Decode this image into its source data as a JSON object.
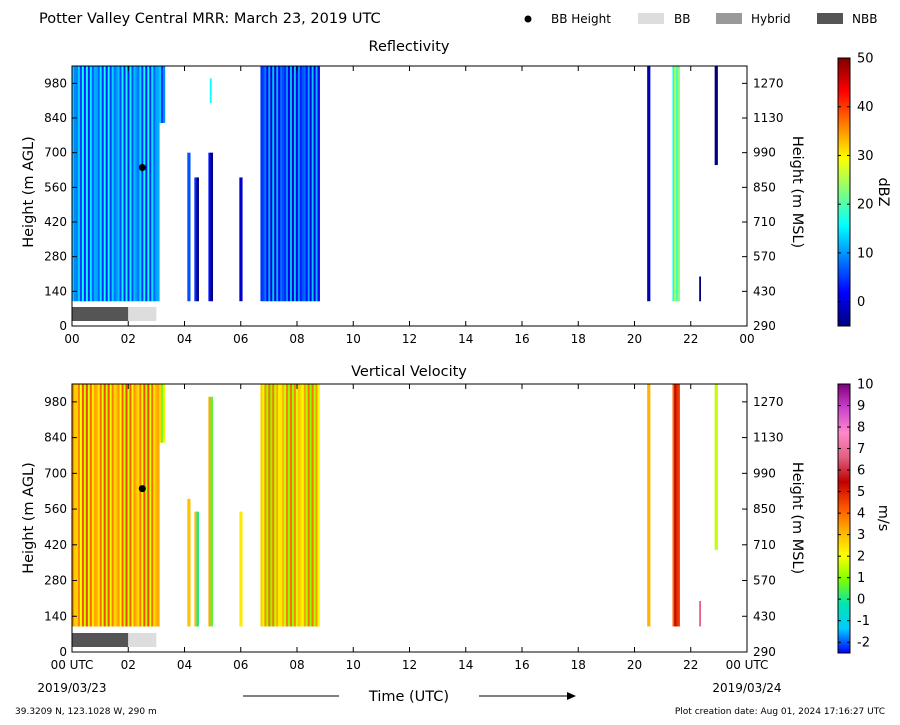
{
  "header": {
    "title": "Potter Valley Central MRR:  March 23, 2019 UTC",
    "legend": [
      {
        "label": "BB Height",
        "kind": "dot",
        "color": "#000000"
      },
      {
        "label": "BB",
        "kind": "swatch",
        "color": "#dddddd"
      },
      {
        "label": "Hybrid",
        "kind": "swatch",
        "color": "#999999"
      },
      {
        "label": "NBB",
        "kind": "swatch",
        "color": "#555555"
      }
    ]
  },
  "footer": {
    "location": "39.3209 N, 123.1028 W, 290 m",
    "creation": "Plot creation date: Aug 01, 2024 17:16:27 UTC",
    "xlabel": "Time (UTC)",
    "start_date": "2019/03/23",
    "end_date": "2019/03/24"
  },
  "chart_data": [
    {
      "type": "heatmap",
      "title": "Reflectivity",
      "ylabel": "Height (m AGL)",
      "y2label": "Height (m MSL)",
      "cbar_label": "dBZ",
      "xlim": [
        0,
        24
      ],
      "ylim": [
        0,
        1050
      ],
      "x_ticks": [
        "00",
        "02",
        "04",
        "06",
        "08",
        "10",
        "12",
        "14",
        "16",
        "18",
        "20",
        "22",
        "00"
      ],
      "y_ticks": [
        0,
        140,
        280,
        420,
        560,
        700,
        840,
        980
      ],
      "y2_ticks": [
        290,
        430,
        570,
        710,
        850,
        990,
        1130,
        1270
      ],
      "cbar_range": [
        -5,
        50
      ],
      "cbar_ticks": [
        0,
        10,
        20,
        30,
        40,
        50
      ],
      "colormap": [
        "#00007f",
        "#0000ff",
        "#007fff",
        "#00ffff",
        "#7fff7f",
        "#ffff00",
        "#ff7f00",
        "#ff0000",
        "#7f0000"
      ],
      "bb_height": [
        {
          "time": 2.5,
          "height": 640
        }
      ],
      "bb_bar": [
        {
          "start": 0.0,
          "end": 2.0,
          "class": "NBB"
        },
        {
          "start": 2.0,
          "end": 3.0,
          "class": "BB"
        }
      ],
      "echo_columns": [
        {
          "start": 0.0,
          "end": 3.1,
          "bottom": 100,
          "top": 1050,
          "value": 10
        },
        {
          "start": 3.1,
          "end": 3.3,
          "bottom": 820,
          "top": 1050,
          "value": 8
        },
        {
          "start": 4.1,
          "end": 4.2,
          "bottom": 100,
          "top": 700,
          "value": 0
        },
        {
          "start": 4.35,
          "end": 4.5,
          "bottom": 100,
          "top": 600,
          "value": -2
        },
        {
          "start": 4.85,
          "end": 5.0,
          "bottom": 100,
          "top": 700,
          "value": -3
        },
        {
          "start": 4.9,
          "end": 4.95,
          "bottom": 900,
          "top": 1000,
          "value": 12
        },
        {
          "start": 5.95,
          "end": 6.05,
          "bottom": 100,
          "top": 600,
          "value": -2
        },
        {
          "start": 6.7,
          "end": 8.8,
          "bottom": 100,
          "top": 1050,
          "value": 6
        },
        {
          "start": 20.45,
          "end": 20.55,
          "bottom": 100,
          "top": 1050,
          "value": 2
        },
        {
          "start": 21.35,
          "end": 21.6,
          "bottom": 100,
          "top": 1050,
          "value": 22
        },
        {
          "start": 22.3,
          "end": 22.35,
          "bottom": 100,
          "top": 200,
          "value": 0
        },
        {
          "start": 22.85,
          "end": 22.95,
          "bottom": 650,
          "top": 1050,
          "value": 0
        }
      ]
    },
    {
      "type": "heatmap",
      "title": "Vertical Velocity",
      "ylabel": "Height (m AGL)",
      "y2label": "Height (m MSL)",
      "cbar_label": "m/s",
      "xlim": [
        0,
        24
      ],
      "ylim": [
        0,
        1050
      ],
      "x_ticks": [
        "00 UTC",
        "02",
        "04",
        "06",
        "08",
        "10",
        "12",
        "14",
        "16",
        "18",
        "20",
        "22",
        "00 UTC"
      ],
      "y_ticks": [
        0,
        140,
        280,
        420,
        560,
        700,
        840,
        980
      ],
      "y2_ticks": [
        290,
        430,
        570,
        710,
        850,
        990,
        1130,
        1270
      ],
      "cbar_range": [
        -2.5,
        10
      ],
      "cbar_ticks": [
        -2,
        -1,
        0,
        1,
        2,
        3,
        4,
        5,
        6,
        7,
        8,
        9,
        10
      ],
      "colormap": [
        "#0000ff",
        "#00ccff",
        "#00e5b0",
        "#7fff00",
        "#ffff00",
        "#ffb000",
        "#ff5000",
        "#c00000",
        "#e06080",
        "#ff88cc",
        "#cc44cc",
        "#800080"
      ],
      "bb_height": [
        {
          "time": 2.5,
          "height": 640
        }
      ],
      "bb_bar": [
        {
          "start": 0.0,
          "end": 2.0,
          "class": "NBB"
        },
        {
          "start": 2.0,
          "end": 3.0,
          "class": "BB"
        }
      ],
      "echo_columns": [
        {
          "start": 0.0,
          "end": 3.1,
          "bottom": 100,
          "top": 1050,
          "value": 3
        },
        {
          "start": 3.1,
          "end": 3.3,
          "bottom": 820,
          "top": 1050,
          "value": 1.5
        },
        {
          "start": 4.1,
          "end": 4.2,
          "bottom": 100,
          "top": 600,
          "value": 1.5
        },
        {
          "start": 4.35,
          "end": 4.5,
          "bottom": 100,
          "top": 550,
          "value": 1.5
        },
        {
          "start": 4.85,
          "end": 5.0,
          "bottom": 100,
          "top": 1000,
          "value": 2
        },
        {
          "start": 5.95,
          "end": 6.05,
          "bottom": 100,
          "top": 550,
          "value": 1.5
        },
        {
          "start": 6.7,
          "end": 8.8,
          "bottom": 100,
          "top": 1050,
          "value": 2.5
        },
        {
          "start": 20.45,
          "end": 20.55,
          "bottom": 100,
          "top": 1050,
          "value": 3.5
        },
        {
          "start": 21.35,
          "end": 21.6,
          "bottom": 100,
          "top": 1050,
          "value": 5
        },
        {
          "start": 22.3,
          "end": 22.35,
          "bottom": 100,
          "top": 200,
          "value": 8
        },
        {
          "start": 22.85,
          "end": 22.95,
          "bottom": 400,
          "top": 1050,
          "value": 3
        }
      ]
    }
  ]
}
